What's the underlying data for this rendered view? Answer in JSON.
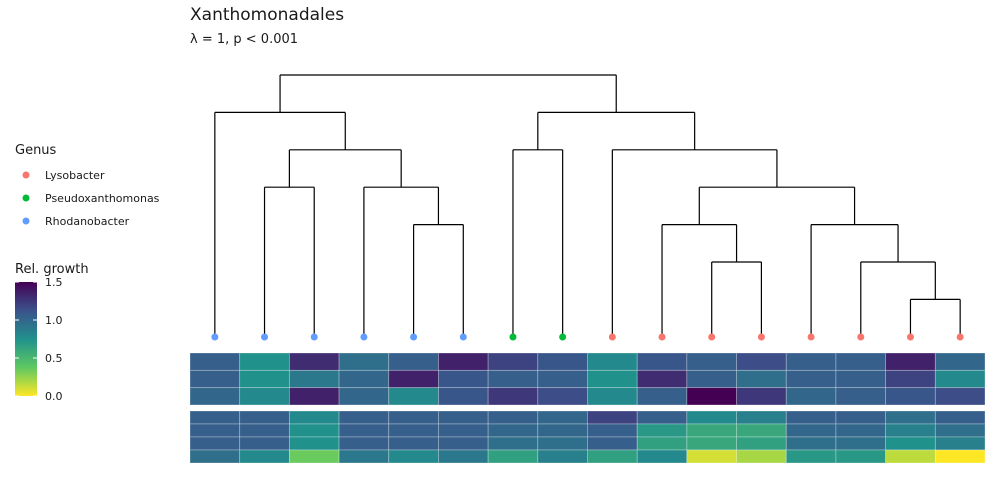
{
  "chart_data": {
    "type": "heatmap",
    "title": "Xanthomonadales",
    "subtitle": "λ = 1, p < 0.001",
    "legend_genus": {
      "title": "Genus",
      "items": [
        {
          "label": "Lysobacter",
          "color": "#F8766D"
        },
        {
          "label": "Pseudoxanthomonas",
          "color": "#00BA38"
        },
        {
          "label": "Rhodanobacter",
          "color": "#619CFF"
        }
      ]
    },
    "colorbar": {
      "title": "Rel. growth",
      "ticks": [
        "1.5",
        "1.0",
        "0.5",
        "0.0"
      ],
      "tick_values": [
        1.5,
        1.0,
        0.5,
        0.0
      ],
      "range": [
        0.0,
        1.5
      ],
      "palette": "viridis-reversed"
    },
    "tips": [
      "R",
      "R",
      "R",
      "R",
      "R",
      "R",
      "P",
      "P",
      "L",
      "L",
      "L",
      "L",
      "L",
      "L",
      "L",
      "L"
    ],
    "tree": {
      "c": [
        {
          "c": [
            {
              "l": 0
            },
            {
              "c": [
                {
                  "c": [
                    {
                      "l": 1
                    },
                    {
                      "l": 2
                    }
                  ]
                },
                {
                  "c": [
                    {
                      "l": 3
                    },
                    {
                      "c": [
                        {
                          "l": 4
                        },
                        {
                          "l": 5
                        }
                      ]
                    }
                  ]
                }
              ]
            }
          ]
        },
        {
          "c": [
            {
              "c": [
                {
                  "l": 6
                },
                {
                  "l": 7
                }
              ]
            },
            {
              "c": [
                {
                  "l": 8
                },
                {
                  "c": [
                    {
                      "c": [
                        {
                          "l": 9
                        },
                        {
                          "c": [
                            {
                              "l": 10
                            },
                            {
                              "l": 11
                            }
                          ]
                        }
                      ]
                    },
                    {
                      "c": [
                        {
                          "l": 12
                        },
                        {
                          "c": [
                            {
                              "l": 13
                            },
                            {
                              "c": [
                                {
                                  "l": 14
                                },
                                {
                                  "l": 15
                                }
                              ]
                            }
                          ]
                        }
                      ]
                    }
                  ]
                }
              ]
            }
          ]
        }
      ]
    },
    "heatmap_top": [
      [
        1.05,
        0.75,
        1.3,
        0.95,
        1.05,
        1.35,
        1.2,
        1.1,
        0.8,
        1.1,
        1.05,
        1.15,
        1.05,
        1.05,
        1.35,
        1.0
      ],
      [
        1.05,
        0.75,
        0.9,
        1.0,
        1.35,
        1.1,
        1.05,
        1.05,
        0.75,
        1.3,
        1.05,
        0.95,
        1.05,
        1.05,
        1.2,
        0.8
      ],
      [
        1.0,
        0.8,
        1.35,
        1.0,
        0.8,
        1.1,
        1.25,
        1.15,
        0.8,
        1.05,
        1.5,
        1.25,
        1.0,
        1.05,
        1.1,
        1.15
      ]
    ],
    "heatmap_bottom": [
      [
        1.05,
        1.05,
        0.8,
        1.05,
        1.05,
        1.05,
        1.05,
        1.0,
        1.2,
        1.05,
        0.8,
        0.85,
        1.05,
        1.05,
        0.95,
        1.05
      ],
      [
        1.05,
        1.05,
        0.75,
        1.05,
        1.05,
        1.05,
        1.0,
        1.0,
        1.05,
        0.7,
        0.6,
        0.6,
        1.0,
        1.0,
        0.85,
        0.95
      ],
      [
        1.05,
        1.05,
        0.75,
        1.05,
        1.05,
        1.05,
        0.95,
        0.95,
        1.05,
        0.65,
        0.6,
        0.65,
        0.95,
        0.95,
        0.75,
        0.85
      ],
      [
        0.95,
        0.8,
        0.35,
        0.9,
        0.8,
        0.9,
        0.65,
        0.85,
        0.65,
        0.8,
        0.1,
        0.2,
        0.7,
        0.7,
        0.15,
        0.0
      ]
    ]
  }
}
